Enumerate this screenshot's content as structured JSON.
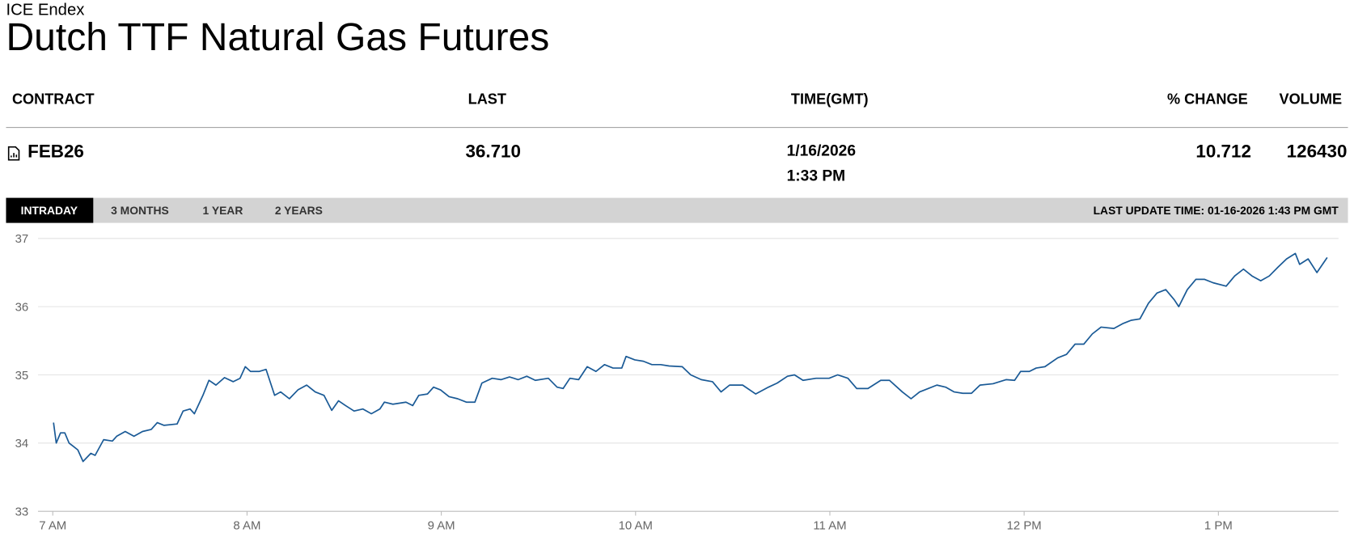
{
  "header": {
    "exchange": "ICE Endex",
    "title": "Dutch TTF Natural Gas Futures"
  },
  "table": {
    "columns": [
      "CONTRACT",
      "LAST",
      "TIME(GMT)",
      "% CHANGE",
      "VOLUME"
    ],
    "row": {
      "contract": "FEB26",
      "last": "36.710",
      "date": "1/16/2026",
      "time": "1:33 PM",
      "change": "10.712",
      "volume": "126430"
    }
  },
  "tabs": [
    "INTRADAY",
    "3 MONTHS",
    "1 YEAR",
    "2 YEARS"
  ],
  "last_update": "LAST UPDATE TIME: 01-16-2026 1:43 PM GMT",
  "chart_data": {
    "type": "line",
    "color": "#1a5a96",
    "grid": true,
    "xlim": [
      6.764,
      13.618
    ],
    "ylim": [
      33,
      37
    ],
    "xticks": [
      {
        "value": 7,
        "label": "7 AM"
      },
      {
        "value": 8,
        "label": "8 AM"
      },
      {
        "value": 9,
        "label": "9 AM"
      },
      {
        "value": 10,
        "label": "10 AM"
      },
      {
        "value": 11,
        "label": "11 AM"
      },
      {
        "value": 12,
        "label": "12 PM"
      },
      {
        "value": 13,
        "label": "1 PM"
      }
    ],
    "yticks": [
      33,
      34,
      35,
      36,
      37
    ],
    "x": [
      7.004,
      7.018,
      7.04,
      7.062,
      7.084,
      7.107,
      7.129,
      7.156,
      7.196,
      7.218,
      7.262,
      7.307,
      7.329,
      7.373,
      7.418,
      7.462,
      7.507,
      7.538,
      7.573,
      7.64,
      7.671,
      7.707,
      7.729,
      7.773,
      7.804,
      7.84,
      7.884,
      7.929,
      7.964,
      7.991,
      8.018,
      8.062,
      8.098,
      8.142,
      8.173,
      8.218,
      8.262,
      8.307,
      8.351,
      8.396,
      8.436,
      8.471,
      8.507,
      8.551,
      8.596,
      8.64,
      8.684,
      8.707,
      8.751,
      8.818,
      8.853,
      8.884,
      8.929,
      8.96,
      8.996,
      9.04,
      9.084,
      9.129,
      9.173,
      9.209,
      9.262,
      9.307,
      9.351,
      9.396,
      9.44,
      9.484,
      9.551,
      9.596,
      9.627,
      9.662,
      9.707,
      9.751,
      9.796,
      9.84,
      9.884,
      9.929,
      9.951,
      9.996,
      10.04,
      10.084,
      10.129,
      10.173,
      10.24,
      10.284,
      10.338,
      10.396,
      10.44,
      10.484,
      10.551,
      10.618,
      10.684,
      10.729,
      10.782,
      10.818,
      10.862,
      10.929,
      10.996,
      11.04,
      11.093,
      11.138,
      11.196,
      11.262,
      11.307,
      11.373,
      11.418,
      11.462,
      11.507,
      11.551,
      11.596,
      11.64,
      11.684,
      11.729,
      11.773,
      11.84,
      11.907,
      11.951,
      11.982,
      12.027,
      12.062,
      12.107,
      12.173,
      12.218,
      12.262,
      12.307,
      12.351,
      12.396,
      12.462,
      12.507,
      12.551,
      12.596,
      12.64,
      12.684,
      12.729,
      12.773,
      12.796,
      12.84,
      12.884,
      12.929,
      12.973,
      13.04,
      13.084,
      13.129,
      13.173,
      13.218,
      13.262,
      13.307,
      13.351,
      13.396,
      13.418,
      13.462,
      13.507,
      13.56
    ],
    "values": [
      34.3,
      34.0,
      34.15,
      34.15,
      34.0,
      33.95,
      33.9,
      33.73,
      33.85,
      33.82,
      34.05,
      34.03,
      34.1,
      34.17,
      34.1,
      34.17,
      34.2,
      34.3,
      34.26,
      34.28,
      34.47,
      34.5,
      34.43,
      34.7,
      34.92,
      34.85,
      34.96,
      34.9,
      34.95,
      35.12,
      35.05,
      35.05,
      35.08,
      34.7,
      34.75,
      34.65,
      34.78,
      34.85,
      34.75,
      34.7,
      34.48,
      34.62,
      34.55,
      34.47,
      34.5,
      34.43,
      34.5,
      34.6,
      34.57,
      34.6,
      34.55,
      34.7,
      34.72,
      34.82,
      34.78,
      34.68,
      34.65,
      34.6,
      34.6,
      34.88,
      34.95,
      34.93,
      34.97,
      34.93,
      34.98,
      34.92,
      34.95,
      34.82,
      34.8,
      34.95,
      34.93,
      35.12,
      35.05,
      35.15,
      35.1,
      35.1,
      35.27,
      35.22,
      35.2,
      35.15,
      35.15,
      35.13,
      35.12,
      35.0,
      34.93,
      34.9,
      34.75,
      34.85,
      34.85,
      34.72,
      34.82,
      34.88,
      34.98,
      35.0,
      34.92,
      34.95,
      34.95,
      35.0,
      34.95,
      34.8,
      34.8,
      34.92,
      34.92,
      34.75,
      34.65,
      34.75,
      34.8,
      34.85,
      34.82,
      34.75,
      34.73,
      34.73,
      34.85,
      34.87,
      34.93,
      34.92,
      35.05,
      35.05,
      35.1,
      35.12,
      35.25,
      35.3,
      35.45,
      35.45,
      35.6,
      35.7,
      35.68,
      35.75,
      35.8,
      35.82,
      36.05,
      36.2,
      36.25,
      36.1,
      36.0,
      36.25,
      36.4,
      36.4,
      36.35,
      36.3,
      36.45,
      36.55,
      36.45,
      36.38,
      36.45,
      36.58,
      36.7,
      36.78,
      36.62,
      36.7,
      36.5,
      36.72
    ]
  }
}
